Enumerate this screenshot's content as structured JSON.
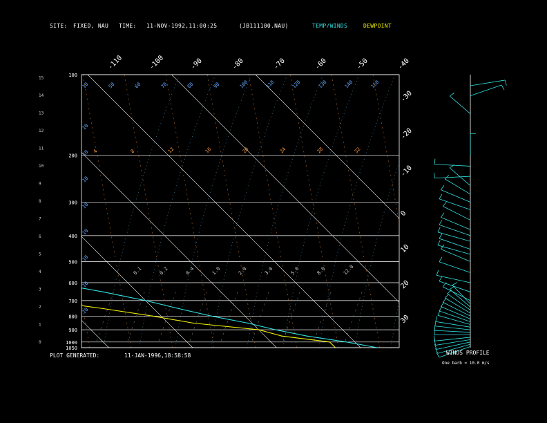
{
  "header": {
    "site_label": "SITE:",
    "site_value": "FIXED, NAU",
    "time_label": "TIME:",
    "time_value": "11-NOV-1992,11:00:25",
    "file_value": "(JB111100.NAU)",
    "legend_temp": "TEMP/WINDS",
    "legend_dew": "DEWPOINT"
  },
  "footer": {
    "generated_label": "PLOT GENERATED:",
    "generated_value": "11-JAN-1996,18:58:58",
    "winds_title": "WINDS PROFILE",
    "winds_note": "One barb = 10.0 m/s"
  },
  "colors": {
    "temp": "#33e0e0",
    "dew": "#f0f000",
    "grid": "#ffffff",
    "dry_adiabat": "#ff9a3c",
    "moist_adiabat": "#66ccff",
    "legend_temp": "#33e0e0",
    "legend_dew": "#f0f000"
  },
  "chart_data": {
    "type": "skew-t",
    "pressure_levels": [
      "100",
      "200",
      "300",
      "400",
      "500",
      "600",
      "700",
      "800",
      "900",
      "1000",
      "1050"
    ],
    "height_km": [
      "0",
      "1",
      "2",
      "3",
      "4",
      "5",
      "6",
      "7",
      "8",
      "9",
      "10",
      "11",
      "12",
      "13",
      "14",
      "15"
    ],
    "temp_ticks_top": [
      "-110",
      "-100",
      "-90",
      "-80",
      "-70",
      "-60",
      "-50",
      "-40"
    ],
    "temp_ticks_right": [
      "-30",
      "-20",
      "-10",
      "0",
      "10",
      "20",
      "30"
    ],
    "top_row_labels": [
      "10",
      "50",
      "60",
      "70",
      "80",
      "90",
      "100",
      "110",
      "120",
      "130",
      "140",
      "150"
    ],
    "dry_adiabat_labels": [
      "4",
      "8",
      "12",
      "16",
      "20",
      "24",
      "28",
      "32"
    ],
    "mixing_ratio_labels": [
      "0.1",
      "0.2",
      "0.4",
      "1.0",
      "2.0",
      "3.0",
      "5.0",
      "8.0",
      "12.0"
    ],
    "moist_left_labels": [
      "10",
      "10",
      "10",
      "10",
      "10",
      "10",
      "10",
      "10"
    ],
    "temperature_profile": [
      {
        "p": 1050,
        "t": 22.0
      },
      {
        "p": 1000,
        "t": 19.0
      },
      {
        "p": 950,
        "t": 15.0
      },
      {
        "p": 900,
        "t": 12.0
      },
      {
        "p": 850,
        "t": 9.5
      },
      {
        "p": 800,
        "t": 6.0
      },
      {
        "p": 750,
        "t": 3.0
      },
      {
        "p": 700,
        "t": 0.0
      },
      {
        "p": 650,
        "t": -4.0
      },
      {
        "p": 600,
        "t": -9.0
      },
      {
        "p": 550,
        "t": -14.0
      },
      {
        "p": 500,
        "t": -17.0
      },
      {
        "p": 450,
        "t": -22.5
      },
      {
        "p": 400,
        "t": -28.0
      },
      {
        "p": 350,
        "t": -35.0
      },
      {
        "p": 300,
        "t": -45.0
      },
      {
        "p": 270,
        "t": -51.0
      },
      {
        "p": 250,
        "t": -55.5
      },
      {
        "p": 220,
        "t": -62.0
      },
      {
        "p": 200,
        "t": -65.0
      },
      {
        "p": 180,
        "t": -66.5
      },
      {
        "p": 160,
        "t": -68.0
      },
      {
        "p": 140,
        "t": -73.0
      },
      {
        "p": 120,
        "t": -76.0
      },
      {
        "p": 100,
        "t": -80.0
      }
    ],
    "dewpoint_profile": [
      {
        "p": 1050,
        "t": 17.0
      },
      {
        "p": 1000,
        "t": 17.0
      },
      {
        "p": 950,
        "t": 12.0
      },
      {
        "p": 900,
        "t": 10.0
      },
      {
        "p": 850,
        "t": 3.0
      },
      {
        "p": 800,
        "t": -1.0
      },
      {
        "p": 750,
        "t": -6.0
      },
      {
        "p": 700,
        "t": -12.0
      },
      {
        "p": 650,
        "t": -17.0
      },
      {
        "p": 600,
        "t": -21.5
      },
      {
        "p": 550,
        "t": -26.0
      },
      {
        "p": 500,
        "t": -30.0
      },
      {
        "p": 450,
        "t": -34.0
      },
      {
        "p": 400,
        "t": -39.0
      },
      {
        "p": 350,
        "t": -47.0
      },
      {
        "p": 300,
        "t": -55.0
      },
      {
        "p": 270,
        "t": -61.0
      },
      {
        "p": 250,
        "t": -65.5
      },
      {
        "p": 220,
        "t": -72.0
      },
      {
        "p": 200,
        "t": -75.5
      },
      {
        "p": 180,
        "t": -80.0
      },
      {
        "p": 160,
        "t": -86.0
      },
      {
        "p": 140,
        "t": -88.0
      },
      {
        "p": 120,
        "t": -88.5
      },
      {
        "p": 100,
        "t": -93.0
      }
    ],
    "winds_profile": [
      {
        "p": 1040,
        "dir": 300,
        "spd": 10
      },
      {
        "p": 1020,
        "dir": 295,
        "spd": 10
      },
      {
        "p": 1000,
        "dir": 290,
        "spd": 10
      },
      {
        "p": 980,
        "dir": 285,
        "spd": 10
      },
      {
        "p": 960,
        "dir": 280,
        "spd": 10
      },
      {
        "p": 940,
        "dir": 270,
        "spd": 10
      },
      {
        "p": 920,
        "dir": 265,
        "spd": 10
      },
      {
        "p": 900,
        "dir": 260,
        "spd": 10
      },
      {
        "p": 880,
        "dir": 255,
        "spd": 10
      },
      {
        "p": 860,
        "dir": 245,
        "spd": 10
      },
      {
        "p": 840,
        "dir": 240,
        "spd": 10
      },
      {
        "p": 820,
        "dir": 235,
        "spd": 10
      },
      {
        "p": 800,
        "dir": 230,
        "spd": 10
      },
      {
        "p": 780,
        "dir": 225,
        "spd": 10
      },
      {
        "p": 760,
        "dir": 220,
        "spd": 10
      },
      {
        "p": 740,
        "dir": 215,
        "spd": 10
      },
      {
        "p": 720,
        "dir": 210,
        "spd": 10
      },
      {
        "p": 700,
        "dir": 230,
        "spd": 10
      },
      {
        "p": 650,
        "dir": 240,
        "spd": 10
      },
      {
        "p": 600,
        "dir": 250,
        "spd": 10
      },
      {
        "p": 550,
        "dir": 240,
        "spd": 10
      },
      {
        "p": 500,
        "dir": 235,
        "spd": 10
      },
      {
        "p": 470,
        "dir": 245,
        "spd": 10
      },
      {
        "p": 450,
        "dir": 240,
        "spd": 10
      },
      {
        "p": 420,
        "dir": 245,
        "spd": 10
      },
      {
        "p": 400,
        "dir": 240,
        "spd": 10
      },
      {
        "p": 380,
        "dir": 235,
        "spd": 10
      },
      {
        "p": 350,
        "dir": 230,
        "spd": 10
      },
      {
        "p": 320,
        "dir": 240,
        "spd": 10
      },
      {
        "p": 300,
        "dir": 235,
        "spd": 10
      },
      {
        "p": 280,
        "dir": 225,
        "spd": 10
      },
      {
        "p": 260,
        "dir": 215,
        "spd": 10
      },
      {
        "p": 240,
        "dir": 275,
        "spd": 10
      },
      {
        "p": 220,
        "dir": 265,
        "spd": 10
      },
      {
        "p": 200,
        "dir": 180,
        "spd": 10
      },
      {
        "p": 140,
        "dir": 215,
        "spd": 10
      },
      {
        "p": 120,
        "dir": 120,
        "spd": 10
      },
      {
        "p": 110,
        "dir": 105,
        "spd": 10
      }
    ]
  }
}
